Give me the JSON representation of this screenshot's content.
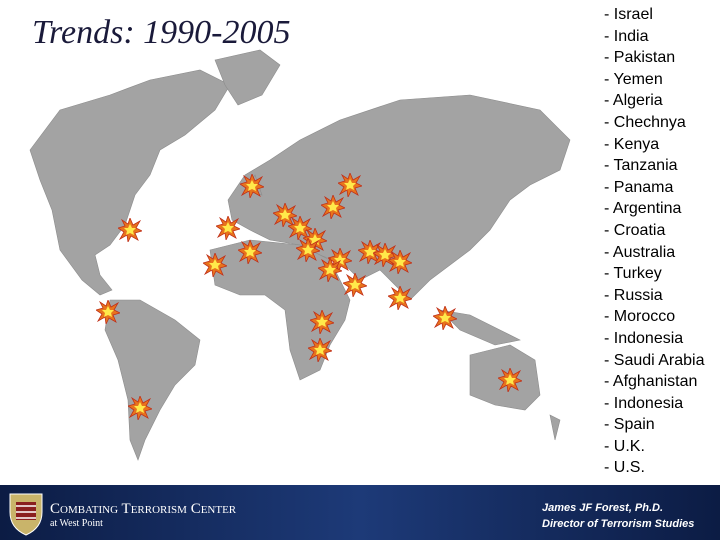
{
  "header": {
    "title": "Trends: 1990-2005"
  },
  "list": {
    "items": [
      "- Israel",
      "- India",
      "- Pakistan",
      "- Yemen",
      "- Algeria",
      "- Chechnya",
      "- Kenya",
      "- Tanzania",
      "- Panama",
      "- Argentina",
      "- Croatia",
      "- Australia",
      "- Turkey",
      "- Russia",
      "- Morocco",
      "- Indonesia",
      "- Saudi Arabia",
      "- Afghanistan",
      "- Indonesia",
      "- Spain",
      "- U.K.",
      "- U.S."
    ]
  },
  "footer": {
    "org": "Combating Terrorism Center",
    "org_sub": "at West Point",
    "author": "James JF Forest, Ph.D.",
    "role": "Director of Terrorism Studies"
  }
}
